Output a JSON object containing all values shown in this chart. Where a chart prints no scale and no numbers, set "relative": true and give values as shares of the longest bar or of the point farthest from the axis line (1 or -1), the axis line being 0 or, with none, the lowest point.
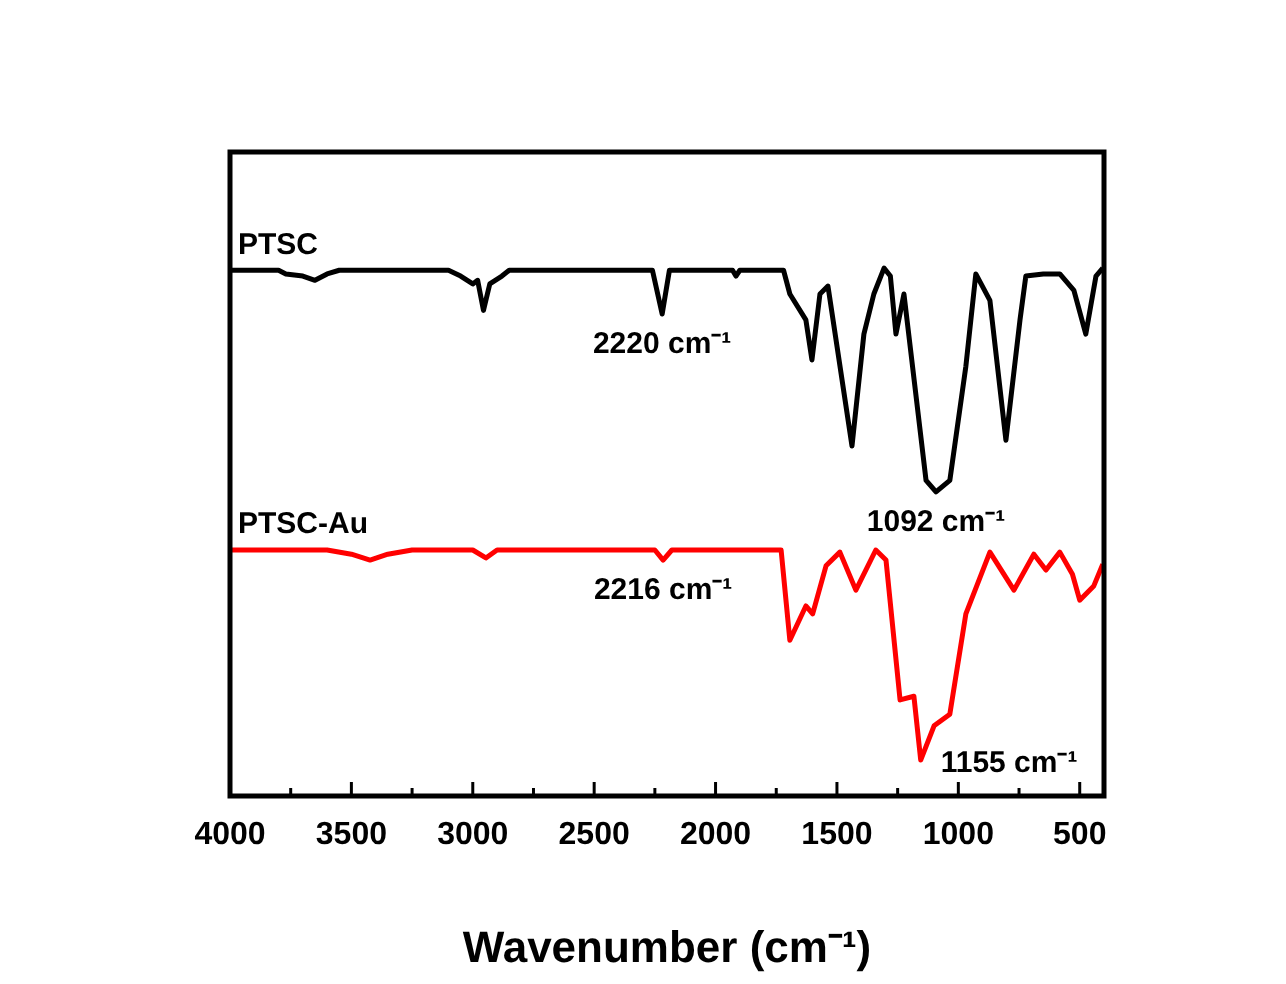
{
  "chart_data": {
    "type": "line",
    "relative": true,
    "xlabel": "Wavenumber (cm⁻¹)",
    "xlim": [
      4000,
      400
    ],
    "xticks": [
      4000,
      {
        "value": 3750,
        "label": null
      },
      3500,
      {
        "value": 3250,
        "label": null
      },
      3000,
      {
        "value": 2750,
        "label": null
      },
      2500,
      {
        "value": 2250,
        "label": null
      },
      2000,
      {
        "value": 1750,
        "label": null
      },
      1500,
      {
        "value": 1250,
        "label": null
      },
      1000,
      {
        "value": 750,
        "label": null
      },
      500
    ],
    "grid": false,
    "legend": false,
    "marker": "none",
    "line_style": "solid",
    "series": [
      {
        "name": "PTSC",
        "color": "#000000",
        "x": [
          4000,
          3800,
          3770,
          3700,
          3650,
          3600,
          3550,
          3100,
          3050,
          3000,
          2980,
          2956,
          2930,
          2880,
          2850,
          2260,
          2220,
          2190,
          1930,
          1916,
          1900,
          1720,
          1694,
          1628,
          1603,
          1570,
          1537,
          1438,
          1389,
          1348,
          1306,
          1280,
          1257,
          1224,
          1133,
          1092,
          1035,
          969,
          928,
          870,
          804,
          746,
          722,
          650,
          582,
          524,
          475,
          433,
          405
        ],
        "values": [
          0.996,
          0.996,
          0.989,
          0.985,
          0.977,
          0.989,
          0.996,
          0.996,
          0.985,
          0.97,
          0.977,
          0.92,
          0.97,
          0.985,
          0.996,
          0.996,
          0.913,
          0.996,
          0.996,
          0.985,
          0.996,
          0.996,
          0.951,
          0.902,
          0.826,
          0.951,
          0.966,
          0.663,
          0.875,
          0.951,
          1.0,
          0.985,
          0.875,
          0.951,
          0.598,
          0.576,
          0.598,
          0.814,
          0.989,
          0.939,
          0.674,
          0.902,
          0.985,
          0.989,
          0.989,
          0.958,
          0.875,
          0.985,
          1.0
        ]
      },
      {
        "name": "PTSC-Au",
        "color": "#ff0000",
        "x": [
          4000,
          3600,
          3500,
          3423,
          3350,
          3250,
          3000,
          2946,
          2900,
          2250,
          2216,
          2180,
          1730,
          1694,
          1628,
          1600,
          1545,
          1488,
          1422,
          1340,
          1298,
          1240,
          1183,
          1155,
          1100,
          1035,
          969,
          870,
          771,
          689,
          639,
          582,
          530,
          500,
          442,
          405
        ],
        "values": [
          0.466,
          0.466,
          0.458,
          0.447,
          0.458,
          0.466,
          0.466,
          0.451,
          0.466,
          0.466,
          0.447,
          0.466,
          0.466,
          0.295,
          0.36,
          0.345,
          0.436,
          0.462,
          0.39,
          0.466,
          0.447,
          0.182,
          0.189,
          0.068,
          0.133,
          0.155,
          0.345,
          0.462,
          0.39,
          0.458,
          0.428,
          0.462,
          0.42,
          0.371,
          0.398,
          0.439
        ]
      }
    ],
    "annotations": [
      {
        "text": "2220 cm⁻¹",
        "x": 2220,
        "y": 0.913
      },
      {
        "text": "1092 cm⁻¹",
        "x": 1092,
        "y": 0.576
      },
      {
        "text": "2216 cm⁻¹",
        "x": 2216,
        "y": 0.447
      },
      {
        "text": "1155 cm⁻¹",
        "x": 1155,
        "y": 0.068
      }
    ]
  }
}
